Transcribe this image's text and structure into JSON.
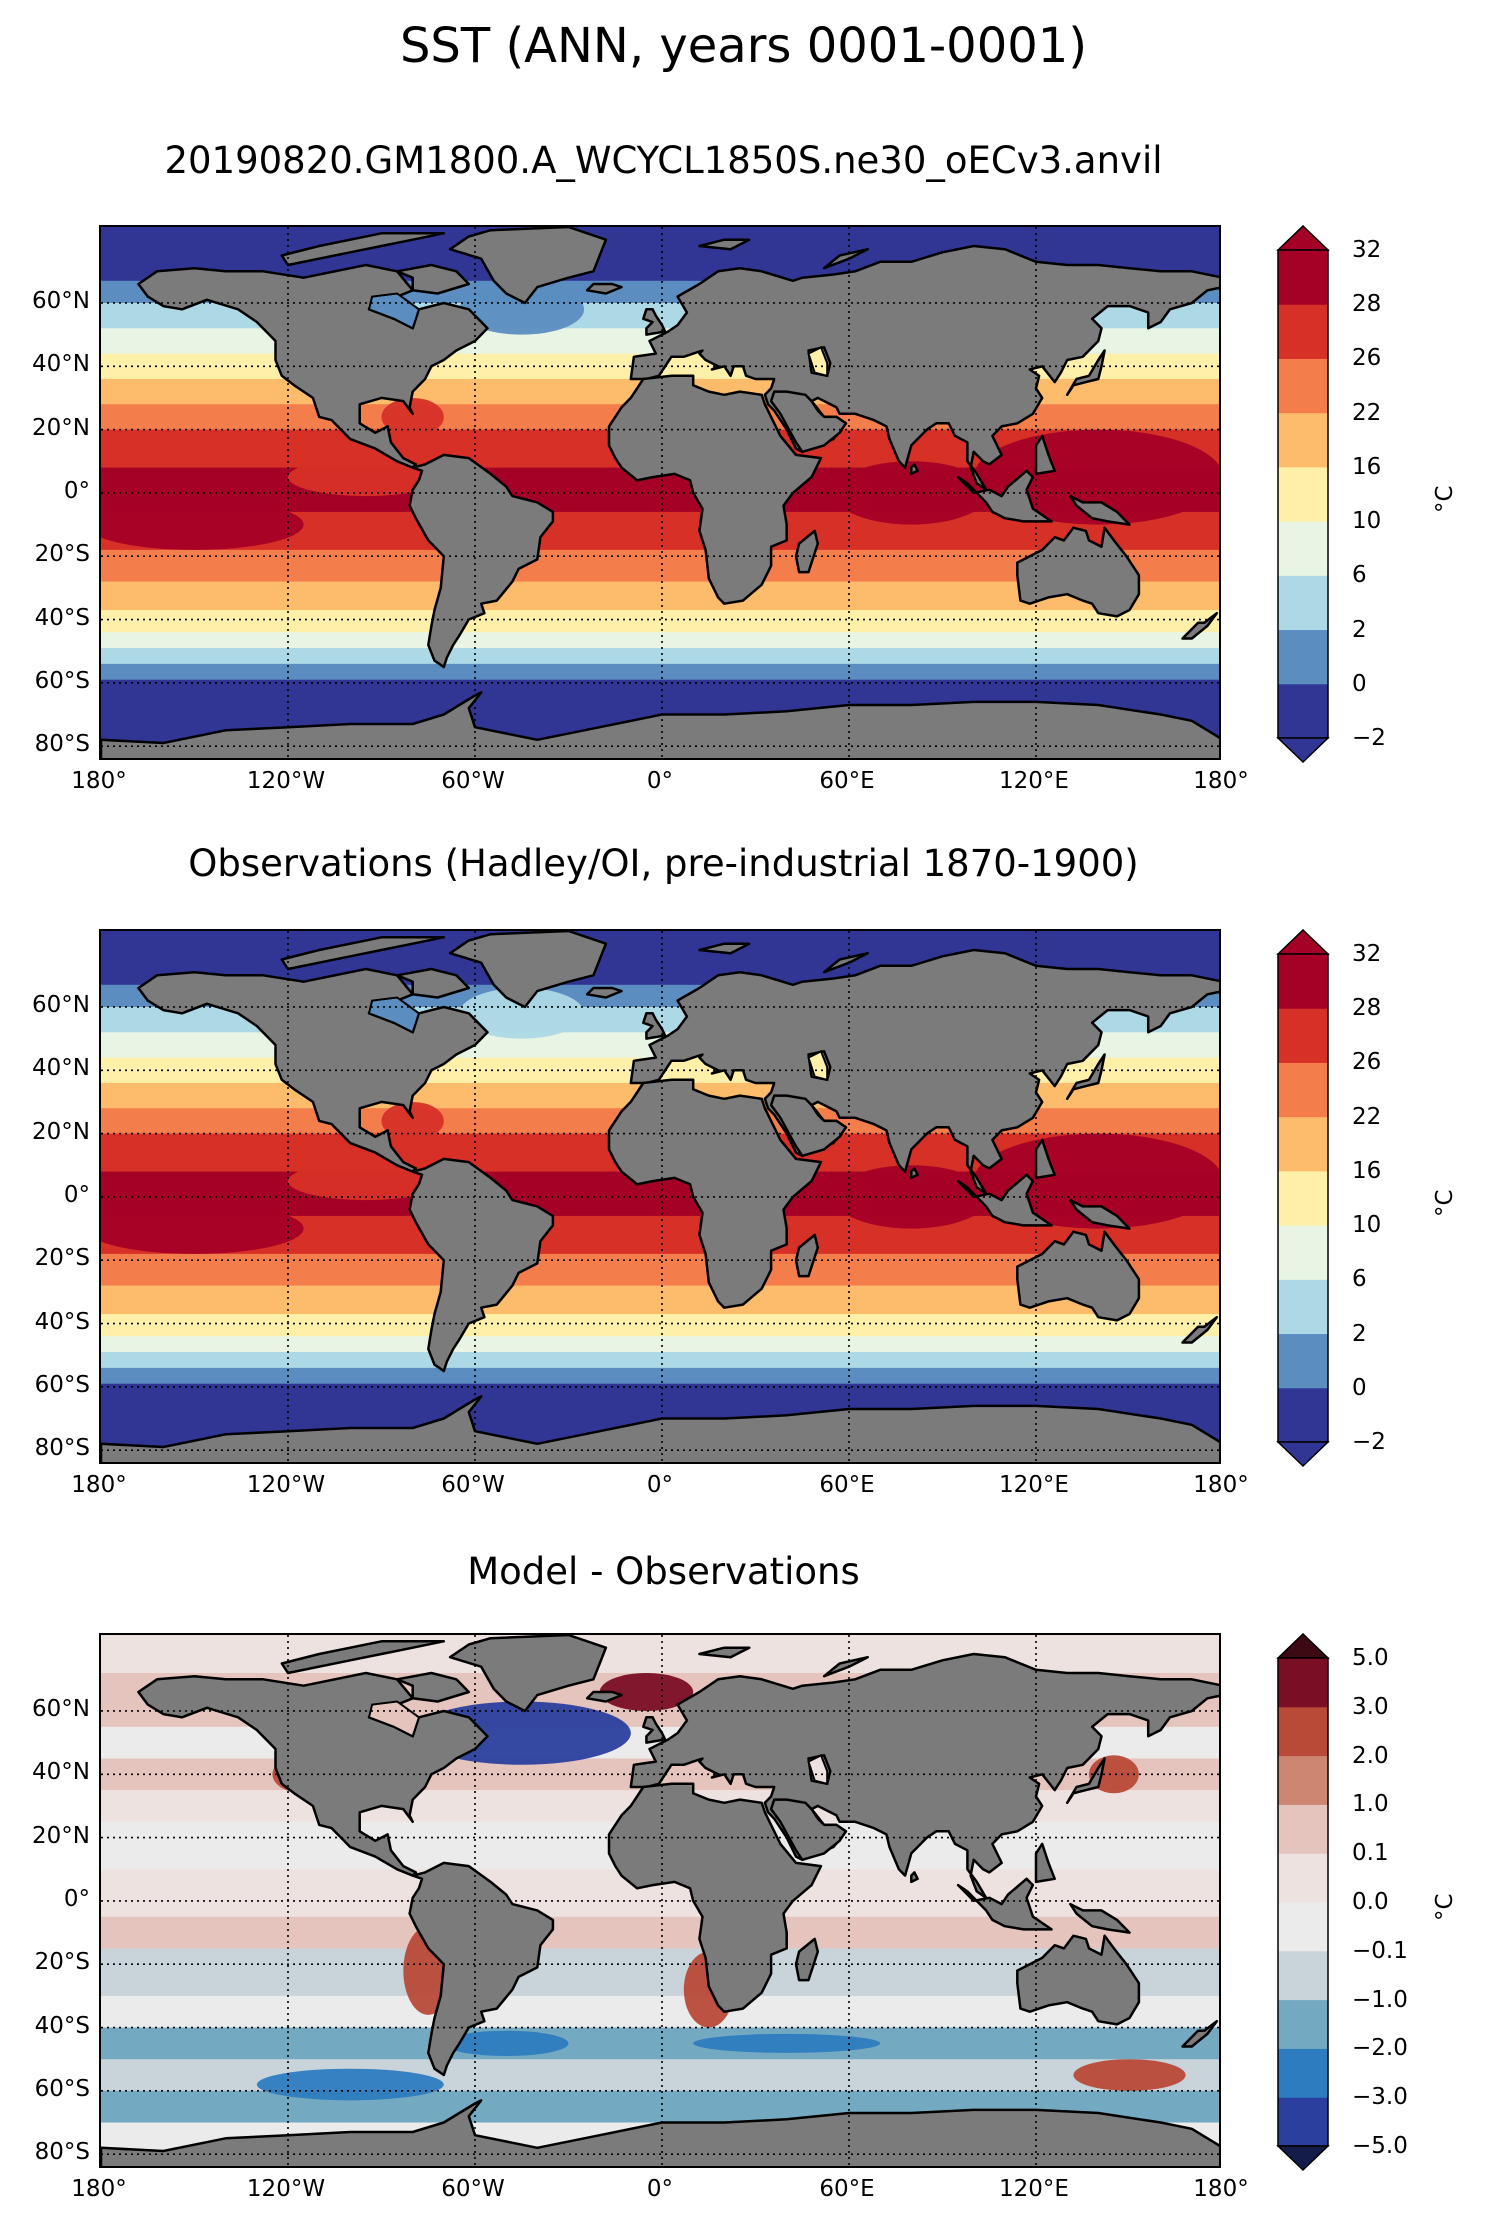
{
  "title": "SST (ANN, years 0001-0001)",
  "panels": [
    {
      "id": "model",
      "title": "20190820.GM1800.A_WCYCL1850S.ne30_oECv3.anvil",
      "colorbar": {
        "levels": [
          "−2",
          "0",
          "2",
          "6",
          "10",
          "16",
          "22",
          "26",
          "28",
          "32"
        ],
        "colors": [
          "#313695",
          "#5b8dc0",
          "#add8e6",
          "#e8f4e4",
          "#fef0a8",
          "#fdbb6c",
          "#f47d4c",
          "#d63027",
          "#a50026"
        ],
        "unit": "°C",
        "extend": "both"
      }
    },
    {
      "id": "obs",
      "title": "Observations (Hadley/OI, pre-industrial 1870-1900)",
      "colorbar": {
        "levels": [
          "−2",
          "0",
          "2",
          "6",
          "10",
          "16",
          "22",
          "26",
          "28",
          "32"
        ],
        "colors": [
          "#313695",
          "#5b8dc0",
          "#add8e6",
          "#e8f4e4",
          "#fef0a8",
          "#fdbb6c",
          "#f47d4c",
          "#d63027",
          "#a50026"
        ],
        "unit": "°C",
        "extend": "both"
      }
    },
    {
      "id": "diff",
      "title": "Model - Observations",
      "colorbar": {
        "levels": [
          "−5.0",
          "−3.0",
          "−2.0",
          "−1.0",
          "−0.1",
          "0.0",
          "0.1",
          "1.0",
          "2.0",
          "3.0",
          "5.0"
        ],
        "colors": [
          "#2b3f9e",
          "#2e7cc0",
          "#74a9c2",
          "#c8d3da",
          "#ecebec",
          "#eee2e0",
          "#e5c4be",
          "#cd8672",
          "#b94a38",
          "#7a0e24"
        ],
        "unit": "°C",
        "extend": "both"
      }
    }
  ],
  "axes": {
    "lat_labels": [
      "60°N",
      "40°N",
      "20°N",
      "0°",
      "20°S",
      "40°S",
      "60°S",
      "80°S"
    ],
    "lon_labels": [
      "180°",
      "120°W",
      "60°W",
      "0°",
      "60°E",
      "120°E",
      "180°"
    ]
  },
  "colors": {
    "land": "#7b7b7b",
    "coast": "#000000"
  }
}
